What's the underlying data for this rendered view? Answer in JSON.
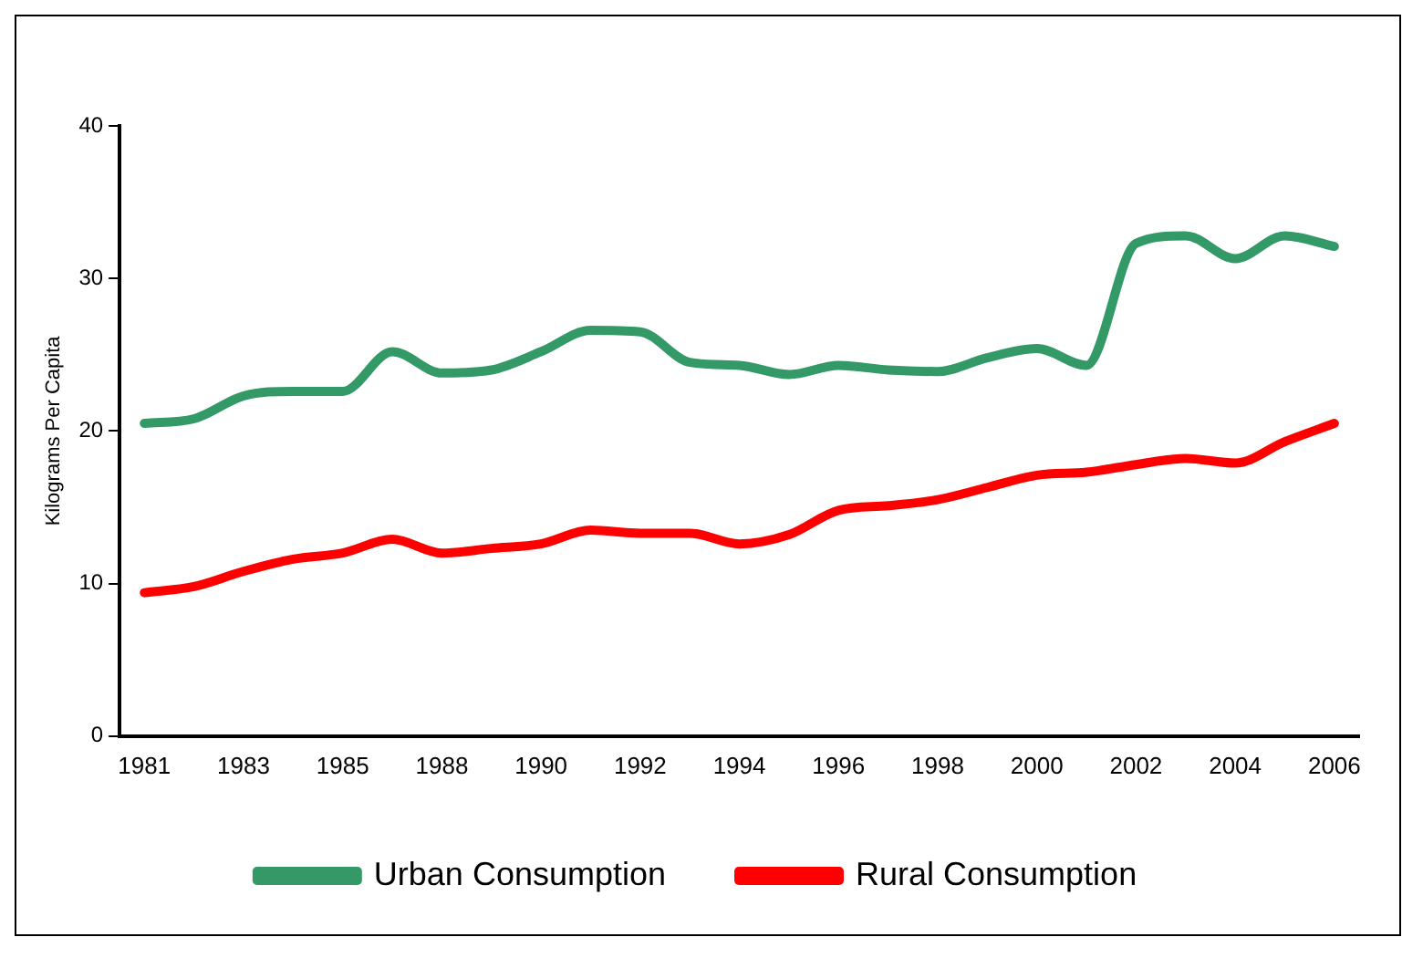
{
  "chart_data": {
    "type": "line",
    "ylabel": "Kilograms Per Capita",
    "categories": [
      "1981",
      null,
      "1983",
      null,
      "1985",
      null,
      "1988",
      null,
      "1990",
      null,
      "1992",
      null,
      "1994",
      null,
      "1996",
      null,
      "1998",
      null,
      "2000",
      null,
      "2002",
      null,
      "2004",
      null,
      "2006"
    ],
    "series": [
      {
        "name": "Urban Consumption",
        "color": "#339966",
        "values": [
          20.5,
          20.8,
          22.3,
          22.6,
          22.6,
          25.2,
          23.8,
          24.0,
          25.2,
          26.6,
          26.5,
          24.5,
          24.3,
          23.7,
          24.3,
          24.0,
          23.9,
          24.8,
          25.4,
          24.3,
          32.3,
          32.8,
          31.3,
          32.8,
          32.1
        ]
      },
      {
        "name": "Rural Consumption",
        "color": "#ff0000",
        "values": [
          9.4,
          9.8,
          10.8,
          11.6,
          12.0,
          12.9,
          12.0,
          12.3,
          12.6,
          13.5,
          13.3,
          13.3,
          12.6,
          13.2,
          14.8,
          15.1,
          15.5,
          16.3,
          17.1,
          17.3,
          17.8,
          18.2,
          17.9,
          19.3,
          20.5
        ]
      }
    ],
    "ylim": [
      0,
      40
    ],
    "yticks": [
      0,
      10,
      20,
      30,
      40
    ],
    "grid": false,
    "legend": "bottom",
    "marker": "none",
    "line_style": "solid"
  }
}
